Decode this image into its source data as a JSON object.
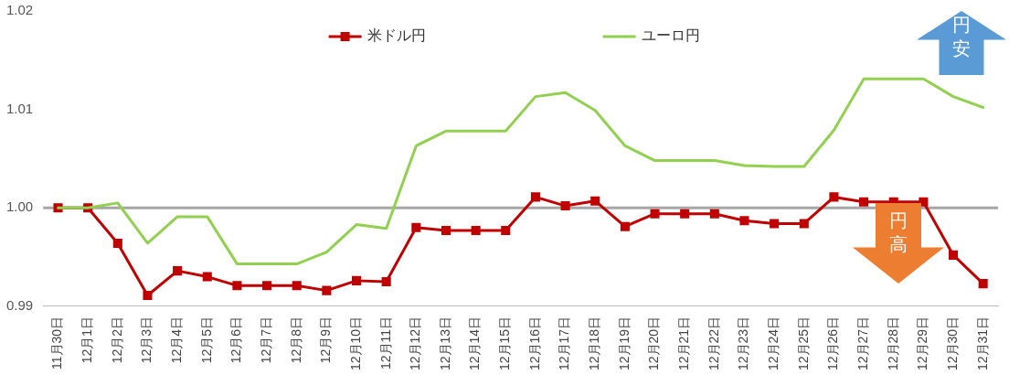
{
  "chart_data": {
    "type": "line",
    "categories": [
      "11月30日",
      "12月1日",
      "12月2日",
      "12月3日",
      "12月4日",
      "12月5日",
      "12月6日",
      "12月7日",
      "12月8日",
      "12月9日",
      "12月10日",
      "12月11日",
      "12月12日",
      "12月13日",
      "12月14日",
      "12月15日",
      "12月16日",
      "12月17日",
      "12月18日",
      "12月19日",
      "12月20日",
      "12月21日",
      "12月22日",
      "12月23日",
      "12月24日",
      "12月25日",
      "12月26日",
      "12月27日",
      "12月28日",
      "12月29日",
      "12月30日",
      "12月31日"
    ],
    "series": [
      {
        "name": "米ドル円",
        "color": "#c00000",
        "marker": "square",
        "values": [
          1.0,
          1.0,
          0.9964,
          0.9911,
          0.9936,
          0.993,
          0.9921,
          0.9921,
          0.9921,
          0.9916,
          0.9926,
          0.9925,
          0.998,
          0.9977,
          0.9977,
          0.9977,
          1.0011,
          1.0002,
          1.0007,
          0.9981,
          0.9994,
          0.9994,
          0.9994,
          0.9987,
          0.9984,
          0.9984,
          1.0011,
          1.0006,
          1.0006,
          1.0006,
          0.9952,
          0.9923
        ]
      },
      {
        "name": "ユーロ円",
        "color": "#92d050",
        "marker": "none",
        "values": [
          1.0,
          1.0,
          1.0005,
          0.9964,
          0.9991,
          0.9991,
          0.9943,
          0.9943,
          0.9943,
          0.9955,
          0.9983,
          0.9979,
          1.0063,
          1.0078,
          1.0078,
          1.0078,
          1.0113,
          1.0117,
          1.0099,
          1.0063,
          1.0048,
          1.0048,
          1.0048,
          1.0043,
          1.0042,
          1.0042,
          1.0079,
          1.0131,
          1.0131,
          1.0131,
          1.0113,
          1.0102
        ]
      }
    ],
    "ylim": [
      0.99,
      1.02
    ],
    "yticks": [
      {
        "value": 0.99,
        "label": "0.99"
      },
      {
        "value": 1.0,
        "label": "1.00"
      },
      {
        "value": 1.01,
        "label": "1.01"
      },
      {
        "value": 1.02,
        "label": "1.02"
      }
    ],
    "ref_lines": [
      {
        "axis": "y",
        "value": 1.0,
        "color": "#a6a6a6"
      }
    ],
    "annotations": [
      "円安",
      "円高"
    ],
    "legend": "top",
    "grid": false,
    "line_style": "solid"
  }
}
